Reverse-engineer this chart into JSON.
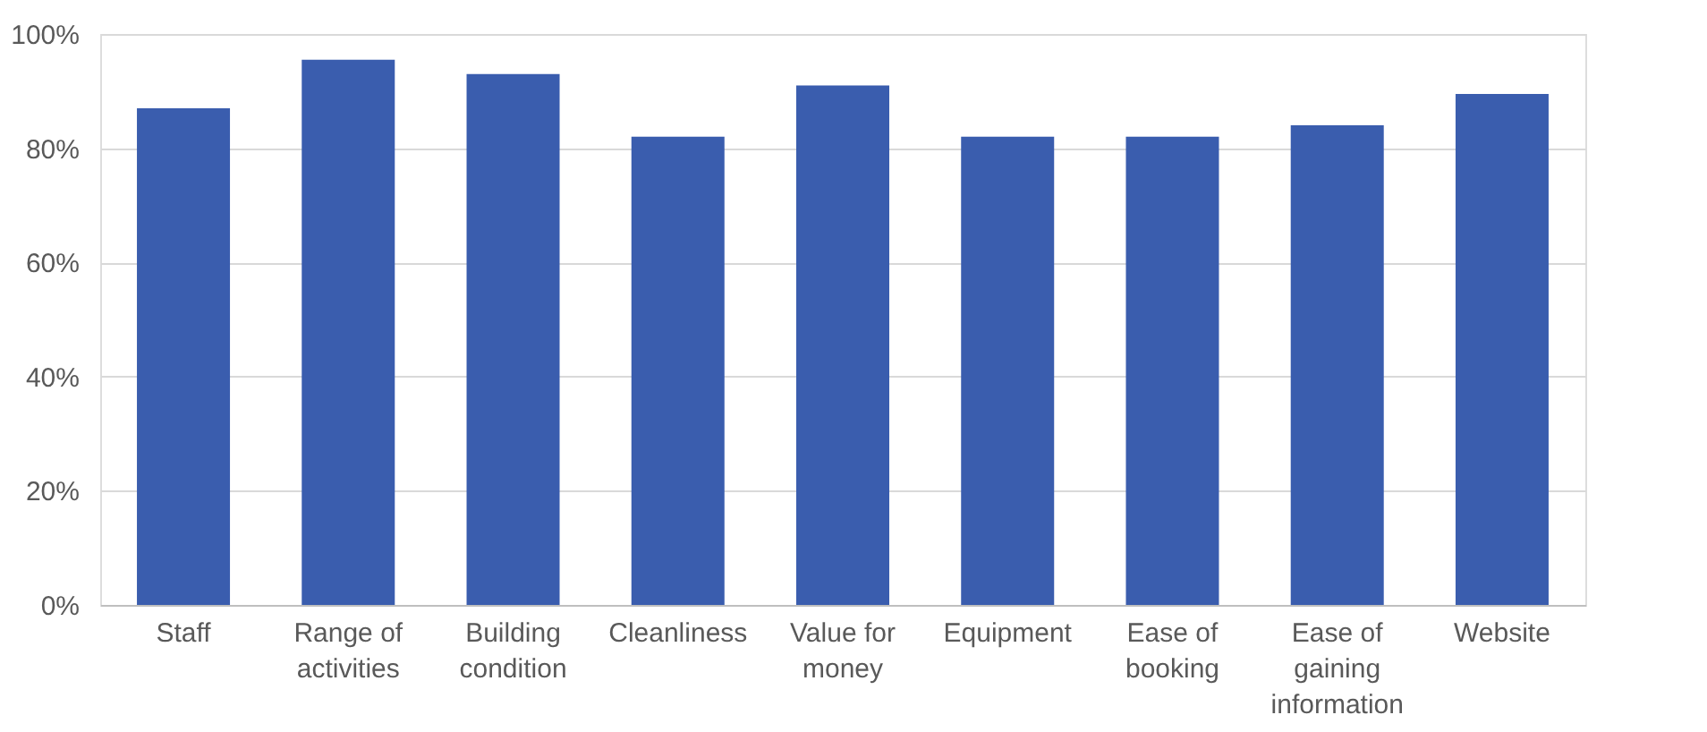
{
  "chart_data": {
    "type": "bar",
    "categories": [
      "Staff",
      "Range of activities",
      "Building condition",
      "Cleanliness",
      "Value for money",
      "Equipment",
      "Ease of booking",
      "Ease of gaining information",
      "Website"
    ],
    "values": [
      87,
      95.5,
      93,
      82,
      91,
      82,
      82,
      84,
      89.5
    ],
    "color": "#3a5dae",
    "ylim": [
      0,
      100
    ],
    "yticks": [
      {
        "value": 0,
        "label": "0%"
      },
      {
        "value": 20,
        "label": "20%"
      },
      {
        "value": 40,
        "label": "40%"
      },
      {
        "value": 60,
        "label": "60%"
      },
      {
        "value": 80,
        "label": "80%"
      },
      {
        "value": 100,
        "label": "100%"
      }
    ],
    "grid": "y"
  }
}
